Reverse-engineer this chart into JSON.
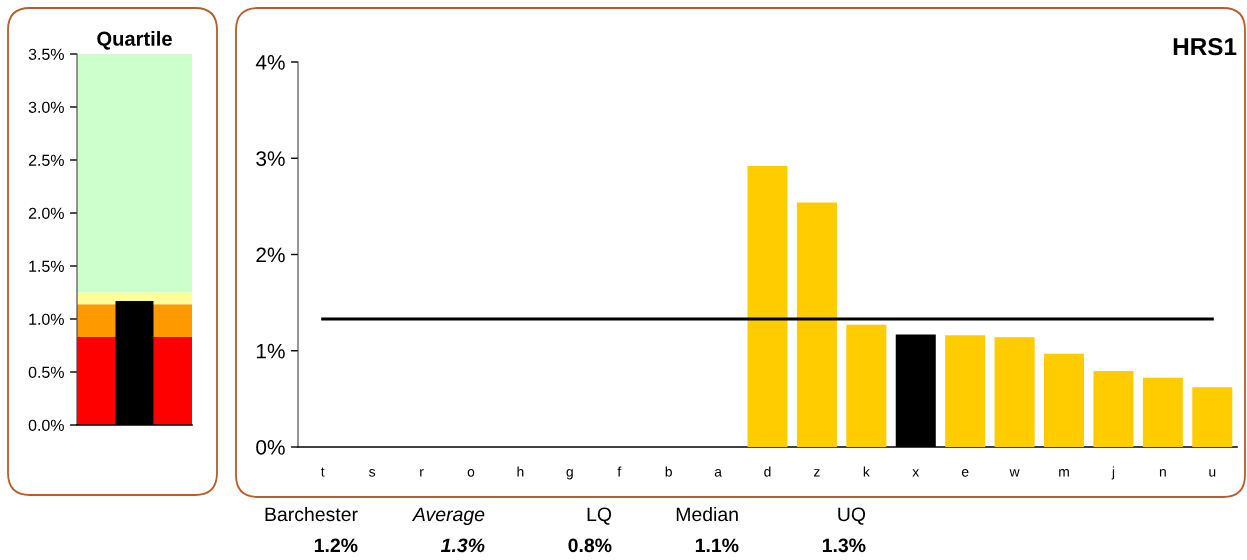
{
  "chart_data": [
    {
      "type": "bar",
      "title": "Quartile",
      "categories": [
        null
      ],
      "values": [
        1.17
      ],
      "color": "#000000",
      "tick_labels": "y",
      "ylim": [
        0,
        3.5
      ],
      "yticks": [
        {
          "value": 0,
          "label": "0.0%"
        },
        {
          "value": 0.5,
          "label": "0.5%"
        },
        {
          "value": 1,
          "label": "1.0%"
        },
        {
          "value": 1.5,
          "label": "1.5%"
        },
        {
          "value": 2,
          "label": "2.0%"
        },
        {
          "value": 2.5,
          "label": "2.5%"
        },
        {
          "value": 3,
          "label": "3.0%"
        },
        {
          "value": 3.5,
          "label": "3.5%"
        }
      ],
      "bands": [
        {
          "axis": "y",
          "from": 0,
          "to": 0.83,
          "color": "#ff0000"
        },
        {
          "axis": "y",
          "from": 0.83,
          "to": 1.14,
          "color": "#ff9900"
        },
        {
          "axis": "y",
          "from": 1.14,
          "to": 1.25,
          "color": "#ffff99"
        },
        {
          "axis": "y",
          "from": 1.25,
          "to": 3.5,
          "color": "#ccffcc"
        }
      ]
    },
    {
      "type": "bar",
      "title": "HRS1",
      "categories": [
        "t",
        "s",
        "r",
        "o",
        "h",
        "g",
        "f",
        "b",
        "a",
        "d",
        "z",
        "k",
        "x",
        "e",
        "w",
        "m",
        "j",
        "n",
        "u"
      ],
      "series": [
        {
          "type": "bar",
          "colors": [
            "#ffcc00",
            "#ffcc00",
            "#ffcc00",
            "#ffcc00",
            "#ffcc00",
            "#ffcc00",
            "#ffcc00",
            "#ffcc00",
            "#ffcc00",
            "#ffcc00",
            "#ffcc00",
            "#ffcc00",
            "#000000",
            "#ffcc00",
            "#ffcc00",
            "#ffcc00",
            "#ffcc00",
            "#ffcc00",
            "#ffcc00"
          ],
          "values": [
            null,
            null,
            null,
            null,
            null,
            null,
            null,
            null,
            null,
            2.92,
            2.54,
            1.27,
            1.17,
            1.16,
            1.14,
            0.97,
            0.79,
            0.72,
            0.62
          ]
        },
        {
          "type": "line",
          "color": "#000000",
          "values": [
            1.33,
            1.33,
            1.33,
            1.33,
            1.33,
            1.33,
            1.33,
            1.33,
            1.33,
            1.33,
            1.33,
            1.33,
            1.33,
            1.33,
            1.33,
            1.33,
            1.33,
            1.33,
            1.33
          ]
        }
      ],
      "ylim": [
        0,
        4
      ],
      "yticks": [
        {
          "value": 0,
          "label": "0%"
        },
        {
          "value": 1,
          "label": "1%"
        },
        {
          "value": 2,
          "label": "2%"
        },
        {
          "value": 3,
          "label": "3%"
        },
        {
          "value": 4,
          "label": "4%"
        }
      ],
      "annotations": [
        "Barchester",
        "1.2%",
        "Average",
        "1.3%",
        "LQ",
        "0.8%",
        "Median",
        "1.1%",
        "UQ",
        "1.3%"
      ]
    }
  ]
}
